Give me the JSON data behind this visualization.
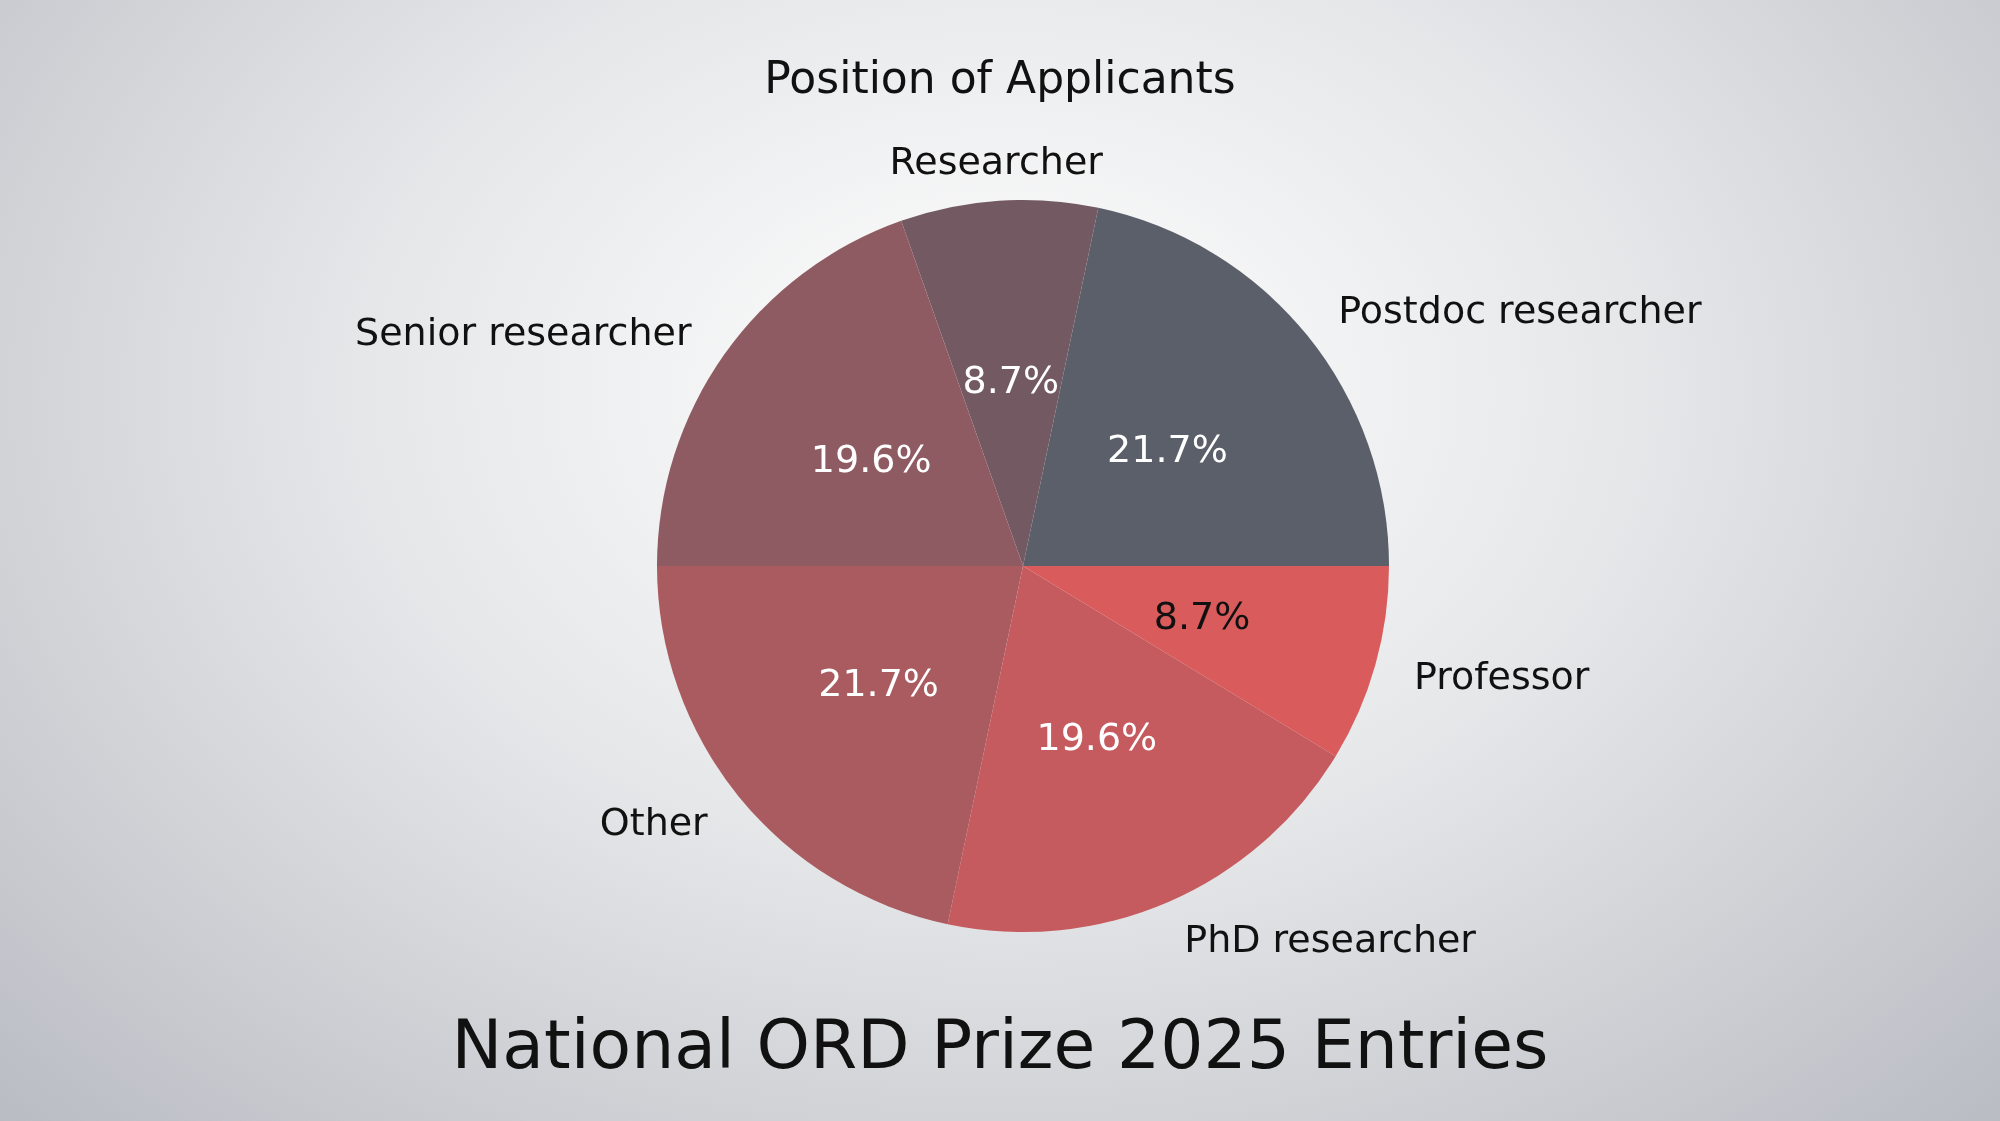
{
  "chart_data": {
    "type": "pie",
    "title": "Position of Applicants",
    "subtitle": "National ORD Prize 2025 Entries",
    "categories": [
      "Postdoc researcher",
      "Researcher",
      "Senior researcher",
      "Other",
      "PhD researcher",
      "Professor"
    ],
    "values": [
      21.7,
      8.7,
      19.6,
      21.7,
      19.6,
      8.7
    ],
    "colors": [
      "#5a5f69",
      "#735a62",
      "#8e5b62",
      "#a95b60",
      "#c55b5f",
      "#d95b5b"
    ],
    "value_labels": [
      "21.7%",
      "8.7%",
      "19.6%",
      "21.7%",
      "19.6%",
      "8.7%"
    ],
    "legend": false
  }
}
